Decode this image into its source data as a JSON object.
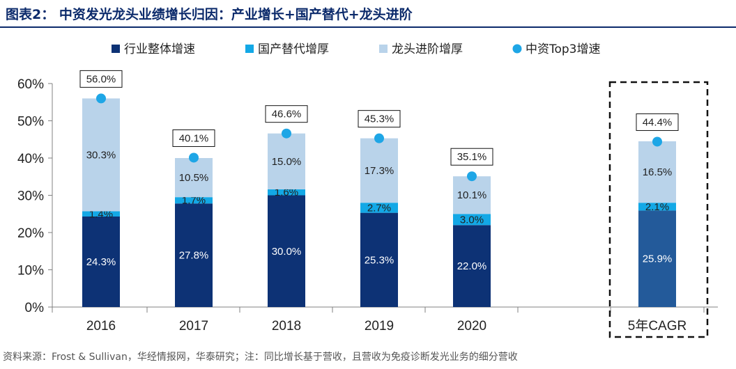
{
  "title": "图表2： 中资发光龙头业绩增长归因：产业增长+国产替代+龙头进阶",
  "source": "资料来源：Frost & Sullivan，华经情报网，华泰研究；注：同比增长基于营收，且营收为免疫诊断发光业务的细分营收",
  "colors": {
    "industry": "#0d3275",
    "domestic": "#13a8e6",
    "leader": "#b9d3ea",
    "dot": "#1ea6e6",
    "cagr_industry": "#235a9a"
  },
  "chart_data": {
    "type": "bar",
    "stacked": true,
    "categories": [
      "2016",
      "2017",
      "2018",
      "2019",
      "2020",
      "5年CAGR"
    ],
    "series": [
      {
        "name": "行业整体增速",
        "values": [
          24.3,
          27.8,
          30.0,
          25.3,
          22.0,
          25.9
        ],
        "labels": [
          "24.3%",
          "27.8%",
          "30.0%",
          "25.3%",
          "22.0%",
          "25.9%"
        ]
      },
      {
        "name": "国产替代增厚",
        "values": [
          1.4,
          1.7,
          1.6,
          2.7,
          3.0,
          2.1
        ],
        "labels": [
          "1.4%",
          "1.7%",
          "1.6%",
          "2.7%",
          "3.0%",
          "2.1%"
        ]
      },
      {
        "name": "龙头进阶增厚",
        "values": [
          30.3,
          10.5,
          15.0,
          17.3,
          10.1,
          16.5
        ],
        "labels": [
          "30.3%",
          "10.5%",
          "15.0%",
          "17.3%",
          "10.1%",
          "16.5%"
        ]
      }
    ],
    "dot_series": {
      "name": "中资Top3增速",
      "values": [
        56.0,
        40.1,
        46.6,
        45.3,
        35.1,
        44.4
      ],
      "labels": [
        "56.0%",
        "40.1%",
        "46.6%",
        "45.3%",
        "35.1%",
        "44.4%"
      ]
    },
    "ylim": [
      0,
      60
    ],
    "yticks": [
      0,
      10,
      20,
      30,
      40,
      50,
      60
    ],
    "ytick_labels": [
      "0%",
      "10%",
      "20%",
      "30%",
      "40%",
      "50%",
      "60%"
    ],
    "highlight_category": "5年CAGR",
    "legend_position": "top"
  }
}
